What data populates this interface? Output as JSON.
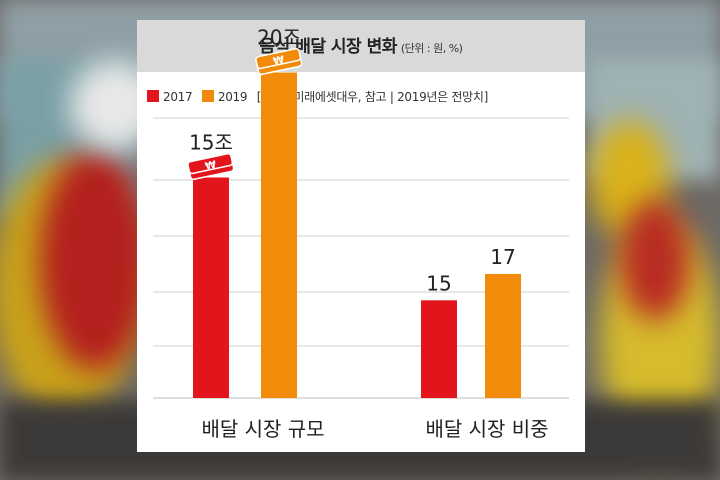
{
  "chart_data": {
    "type": "bar",
    "title": "음식 배달 시장 변화",
    "unit_note": "(단위 : 원, %)",
    "source_note": "[자료 | 미래에셋대우, 참고 | 2019년은 전망치]",
    "categories": [
      "배달 시장 규모",
      "배달 시장 비중"
    ],
    "series": [
      {
        "name": "2017",
        "color": "#e3141c",
        "values": [
          15,
          15
        ],
        "labels": [
          "15조",
          "15"
        ]
      },
      {
        "name": "2019",
        "color": "#f28a0a",
        "values": [
          20,
          17
        ],
        "labels": [
          "20조",
          "17"
        ]
      }
    ],
    "grid": true,
    "legend_position": "top-left"
  },
  "colors": {
    "bar_2017": "#e3141c",
    "bar_2019": "#f28a0a",
    "title_band": "#d9d9d9"
  }
}
